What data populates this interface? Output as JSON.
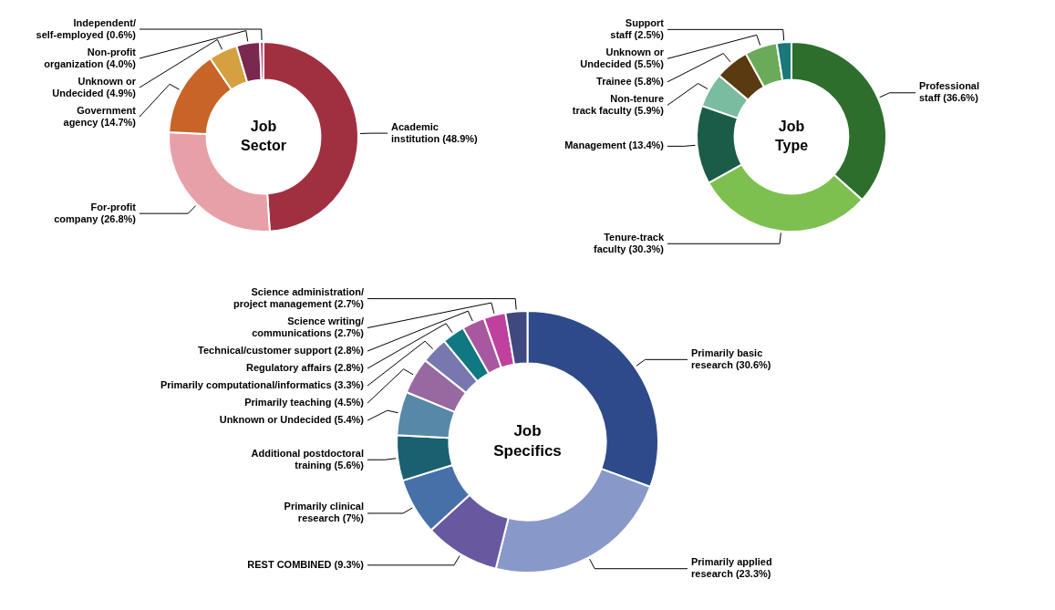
{
  "chart_data": [
    {
      "type": "doughnut",
      "title": "Job\nSector",
      "values": [
        48.9,
        26.8,
        14.7,
        4.9,
        4.0,
        0.6
      ],
      "colors": [
        "#a03040",
        "#e8a0a8",
        "#c86428",
        "#d4a040",
        "#7a2850",
        "#c03868"
      ],
      "data_labels": true,
      "value_labels": [
        "Academic\ninstitution (48.9%)",
        "For-profit\ncompany (26.8%)",
        "Government\nagency (14.7%)",
        "Unknown or\nUndecided (4.9%)",
        "Non-profit\norganization (4.0%)",
        "Independent/\nself-employed (0.6%)"
      ]
    },
    {
      "type": "doughnut",
      "title": "Job\nType",
      "values": [
        36.6,
        30.3,
        13.4,
        5.9,
        5.8,
        5.5,
        2.5
      ],
      "colors": [
        "#2d6e2d",
        "#7dc050",
        "#1a5c48",
        "#7abca0",
        "#5a3a10",
        "#6aaa58",
        "#1a7878"
      ],
      "data_labels": true,
      "value_labels": [
        "Professional\nstaff (36.6%)",
        "Tenure-track\nfaculty (30.3%)",
        "Management (13.4%)",
        "Non-tenure\ntrack faculty (5.9%)",
        "Trainee (5.8%)",
        "Unknown or\nUndecided (5.5%)",
        "Support\nstaff (2.5%)"
      ]
    },
    {
      "type": "doughnut",
      "title": "Job\nSpecifics",
      "values": [
        30.6,
        23.3,
        9.3,
        7.0,
        5.6,
        5.4,
        4.5,
        3.3,
        2.8,
        2.8,
        2.7,
        2.7
      ],
      "colors": [
        "#2e4a8a",
        "#8898c8",
        "#6858a0",
        "#4870a8",
        "#1a6070",
        "#5888a8",
        "#9868a0",
        "#7878b0",
        "#107880",
        "#a858a0",
        "#c040a0",
        "#404880"
      ],
      "data_labels": true,
      "value_labels": [
        "Primarily basic\nresearch (30.6%)",
        "Primarily applied\nresearch (23.3%)",
        "REST COMBINED (9.3%)",
        "Primarily clinical\nresearch (7%)",
        "Additional postdoctoral\ntraining (5.6%)",
        "Unknown or Undecided (5.4%)",
        "Primarily teaching (4.5%)",
        "Primarily computational/informatics (3.3%)",
        "Regulatory affairs (2.8%)",
        "Technical/customer support (2.8%)",
        "Science writing/\ncommunications (2.7%)",
        "Science administration/\nproject management (2.7%)"
      ]
    }
  ]
}
